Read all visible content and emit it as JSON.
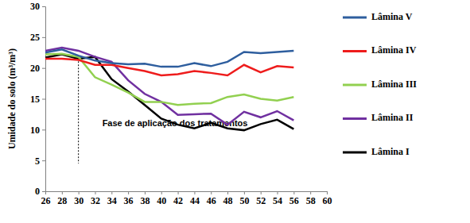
{
  "chart_data": {
    "type": "line",
    "y_label": "Umidade do solo (m³/m³)",
    "x": [
      26,
      28,
      30,
      32,
      34,
      36,
      38,
      40,
      42,
      44,
      46,
      48,
      50,
      52,
      54,
      56
    ],
    "xlim": [
      26,
      60
    ],
    "xticks": [
      26,
      28,
      30,
      32,
      34,
      36,
      38,
      40,
      42,
      44,
      46,
      48,
      50,
      52,
      54,
      56,
      58,
      60
    ],
    "ylim": [
      0,
      30
    ],
    "yticks": [
      0,
      5,
      10,
      15,
      20,
      25,
      30
    ],
    "grid": false,
    "legend": "right",
    "annotations": [
      {
        "text": "Fase de aplicação dos tratamentos",
        "x": 30
      }
    ],
    "series": [
      {
        "name": "Lâmina V",
        "color": "#2e5e9e",
        "values": [
          22.5,
          23,
          22,
          21.2,
          20.8,
          20.6,
          20.7,
          20.2,
          20.2,
          20.8,
          20.3,
          21,
          22.6,
          22.4,
          22.6,
          22.8
        ]
      },
      {
        "name": "Lâmina IV",
        "color": "#ee1c1c",
        "values": [
          21.5,
          21.5,
          21.3,
          20.5,
          20.5,
          20,
          19.5,
          18.8,
          19,
          19.5,
          19.2,
          18.8,
          20.5,
          19.3,
          20.3,
          20.1
        ]
      },
      {
        "name": "Lâmina III",
        "color": "#92d050",
        "values": [
          22.2,
          22.3,
          21.8,
          18.5,
          17.3,
          16,
          14.5,
          14.5,
          14,
          14.2,
          14.3,
          15.3,
          15.7,
          15,
          14.7,
          15.3
        ]
      },
      {
        "name": "Lâmina II",
        "color": "#7030a0",
        "values": [
          22.8,
          23.3,
          22.8,
          21.8,
          21,
          18,
          15.8,
          14.5,
          12.4,
          12.5,
          12.6,
          10.8,
          12.9,
          12,
          13,
          11.5
        ]
      },
      {
        "name": "Lâmina I",
        "color": "#000000",
        "values": [
          21.7,
          22.2,
          21.5,
          21.8,
          18.2,
          16.2,
          14,
          11.8,
          10.8,
          10.2,
          11.1,
          10.2,
          9.9,
          10.9,
          11.6,
          10.1
        ]
      }
    ]
  }
}
